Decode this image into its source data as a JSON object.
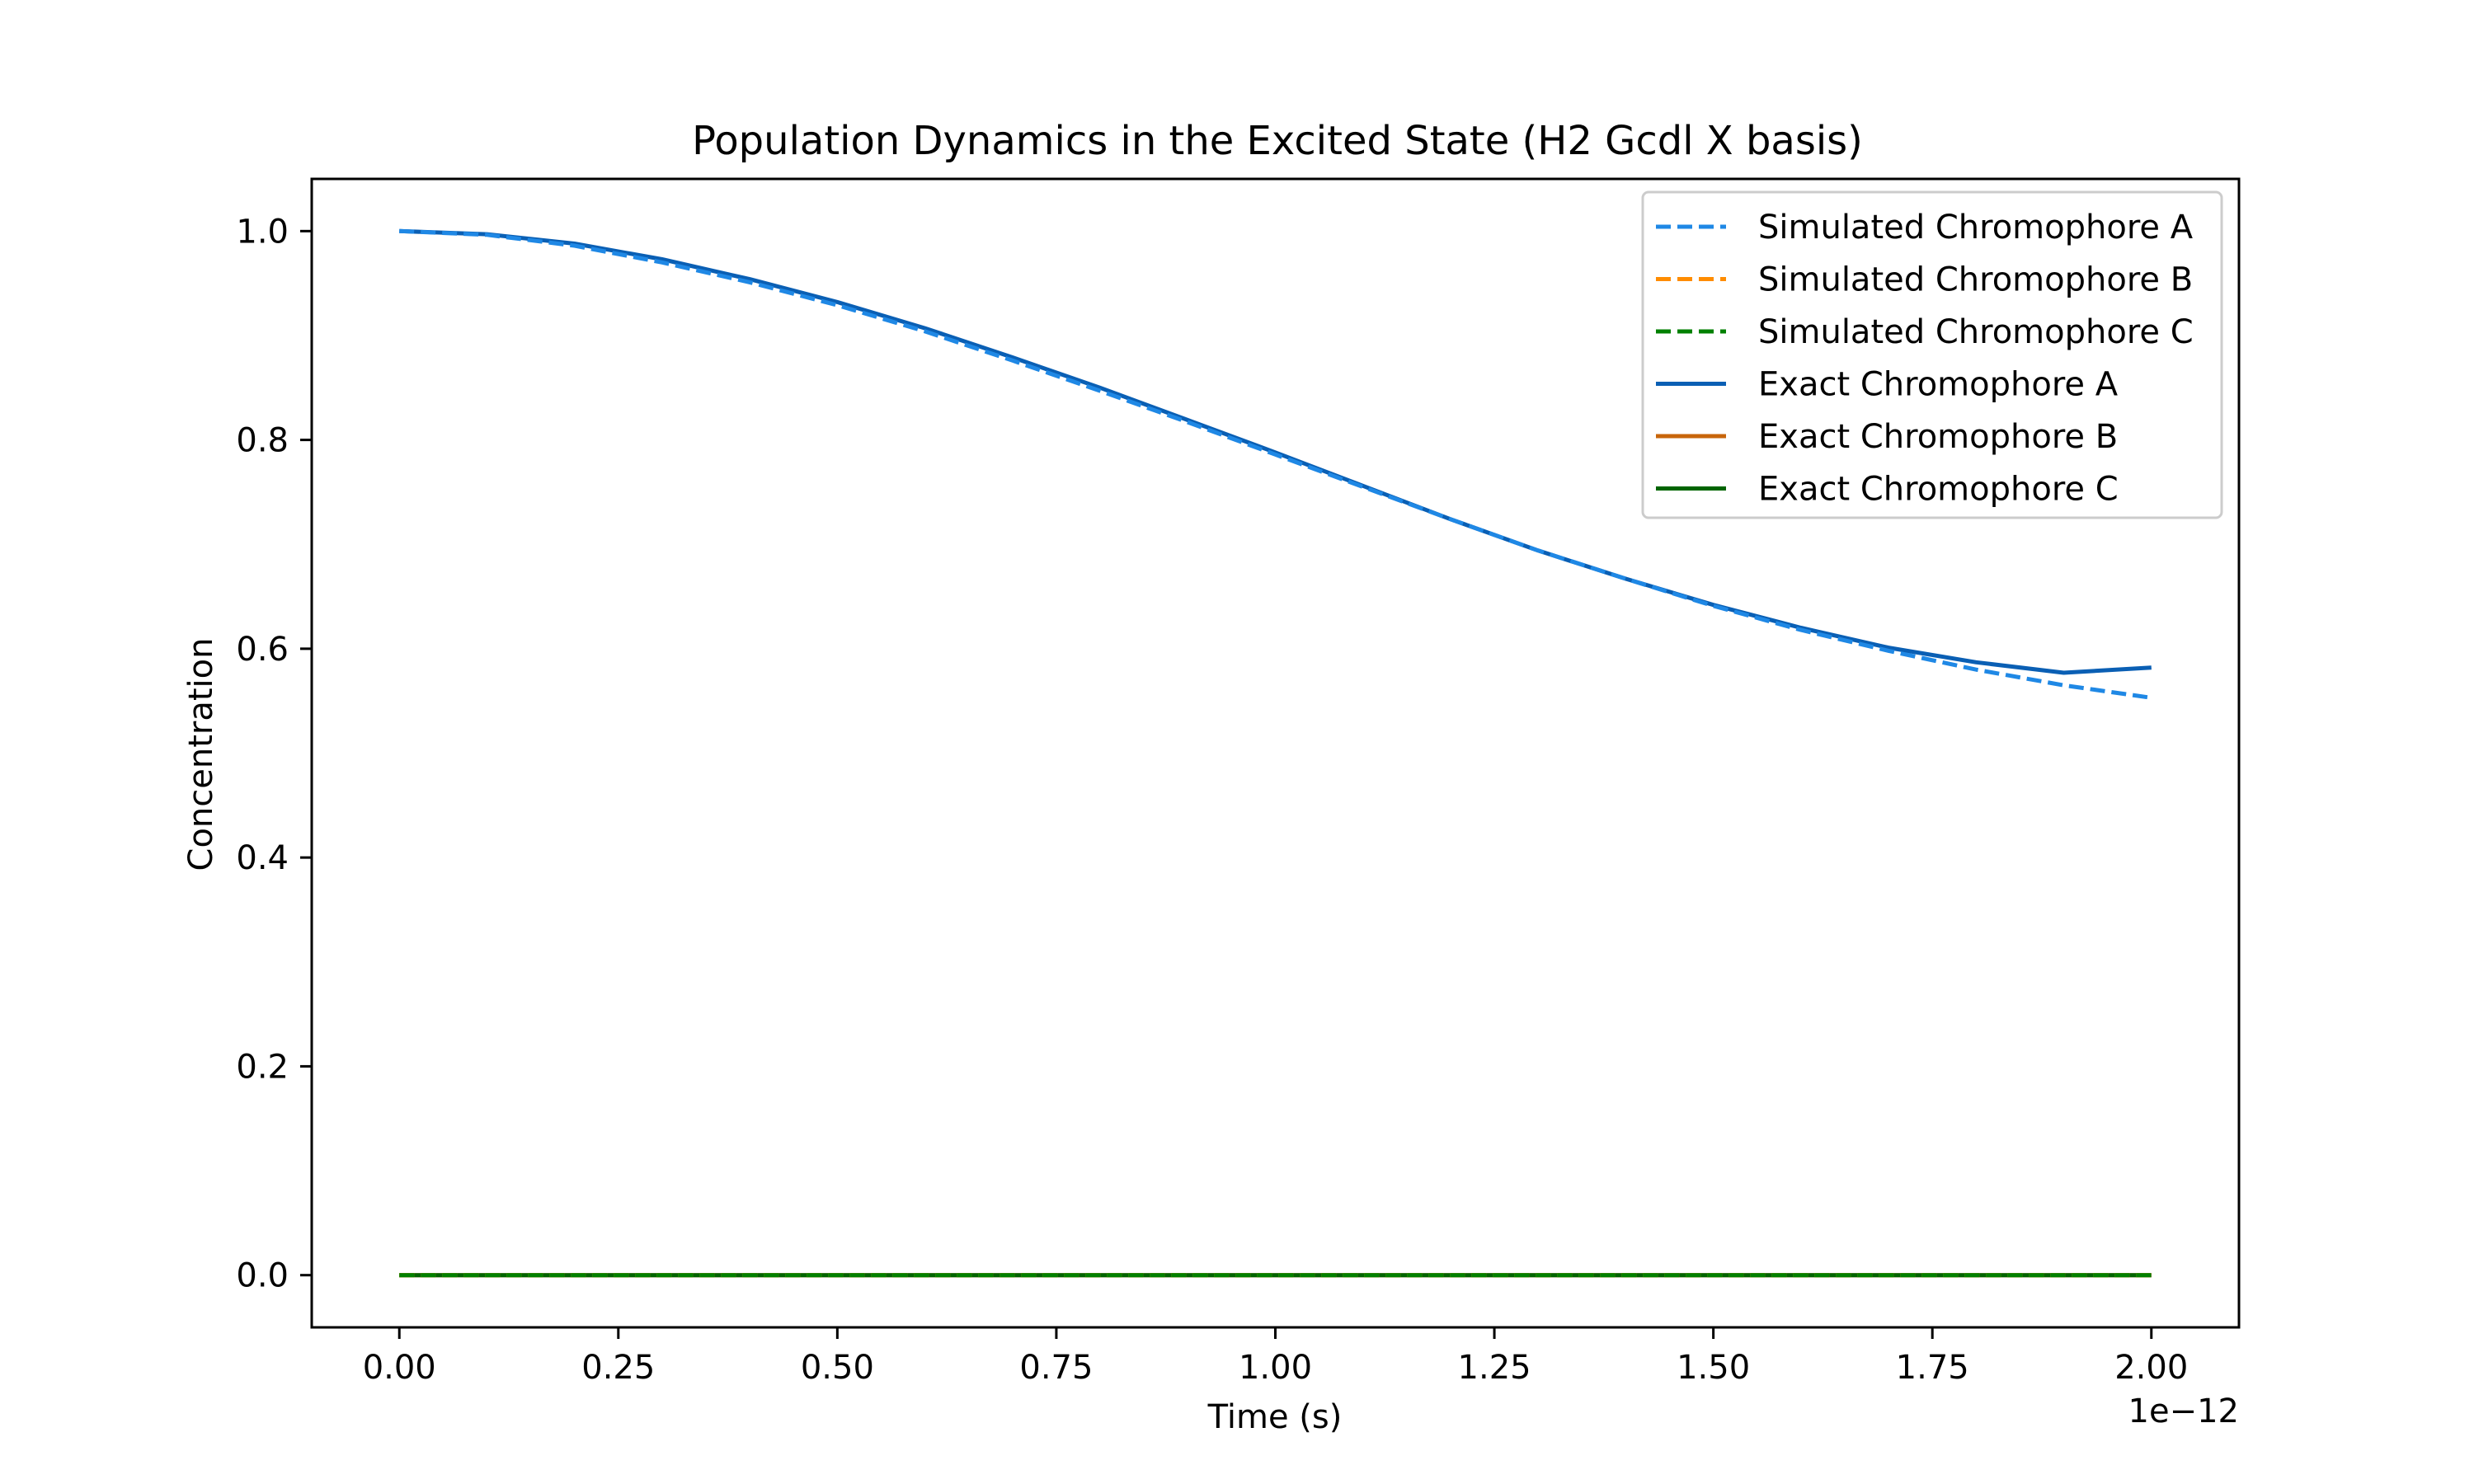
{
  "chart_data": {
    "type": "line",
    "title": "Population Dynamics in the Excited State (H2 Gcdl X basis)",
    "xlabel": "Time (s)",
    "ylabel": "Concentration",
    "x_offset_text": "1e−12",
    "xlim": [
      -1e-13,
      2.1e-12
    ],
    "ylim": [
      -0.05,
      1.05
    ],
    "xticks": [
      0,
      2.5e-13,
      5e-13,
      7.5e-13,
      1e-12,
      1.25e-12,
      1.5e-12,
      1.75e-12,
      2e-12
    ],
    "xtick_labels": [
      "0.00",
      "0.25",
      "0.50",
      "0.75",
      "1.00",
      "1.25",
      "1.50",
      "1.75",
      "2.00"
    ],
    "yticks": [
      0.0,
      0.2,
      0.4,
      0.6,
      0.8,
      1.0
    ],
    "ytick_labels": [
      "0.0",
      "0.2",
      "0.4",
      "0.6",
      "0.8",
      "1.0"
    ],
    "grid": false,
    "legend_position": "top-right",
    "x": [
      0,
      1e-13,
      2e-13,
      3e-13,
      4e-13,
      5e-13,
      6e-13,
      7e-13,
      8e-13,
      9e-13,
      1e-12,
      1.1e-12,
      1.2e-12,
      1.3e-12,
      1.4e-12,
      1.5e-12,
      1.6e-12,
      1.7e-12,
      1.8e-12,
      1.9e-12,
      2e-12
    ],
    "series": [
      {
        "name": "Simulated Chromophore A",
        "style": "dashed",
        "color": "#1f88e5",
        "values": [
          1.0,
          0.9965,
          0.986,
          0.97,
          0.951,
          0.929,
          0.904,
          0.876,
          0.847,
          0.817,
          0.786,
          0.755,
          0.724,
          0.694,
          0.667,
          0.641,
          0.618,
          0.598,
          0.58,
          0.565,
          0.553
        ]
      },
      {
        "name": "Simulated Chromophore B",
        "style": "dashed",
        "color": "#ff8c00",
        "values": [
          0,
          0,
          0,
          0,
          0,
          0,
          0,
          0,
          0,
          0,
          0,
          0,
          0,
          0,
          0,
          0,
          0,
          0,
          0,
          0,
          0
        ]
      },
      {
        "name": "Simulated Chromophore C",
        "style": "dashed",
        "color": "#008000",
        "values": [
          0,
          0,
          0,
          0,
          0,
          0,
          0,
          0,
          0,
          0,
          0,
          0,
          0,
          0,
          0,
          0,
          0,
          0,
          0,
          0,
          0
        ]
      },
      {
        "name": "Exact Chromophore A",
        "style": "solid",
        "color": "#0a5fb4",
        "values": [
          1.0,
          0.997,
          0.988,
          0.973,
          0.954,
          0.932,
          0.907,
          0.879,
          0.85,
          0.819,
          0.788,
          0.756,
          0.724,
          0.694,
          0.667,
          0.642,
          0.62,
          0.601,
          0.587,
          0.577,
          0.582
        ]
      },
      {
        "name": "Exact Chromophore B",
        "style": "solid",
        "color": "#c8650a",
        "values": [
          0,
          0,
          0,
          0,
          0,
          0,
          0,
          0,
          0,
          0,
          0,
          0,
          0,
          0,
          0,
          0,
          0,
          0,
          0,
          0,
          0
        ]
      },
      {
        "name": "Exact Chromophore C",
        "style": "solid",
        "color": "#006400",
        "values": [
          0,
          0,
          0,
          0,
          0,
          0,
          0,
          0,
          0,
          0,
          0,
          0,
          0,
          0,
          0,
          0,
          0,
          0,
          0,
          0,
          0
        ]
      }
    ]
  }
}
